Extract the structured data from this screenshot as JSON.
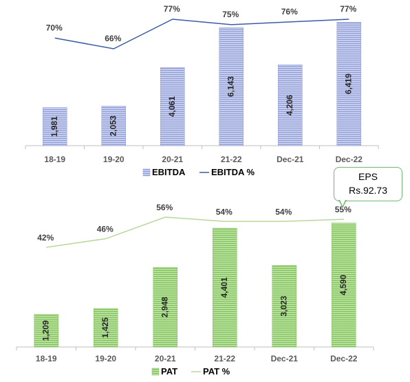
{
  "chart_data": [
    {
      "type": "bar",
      "categories": [
        "18-19",
        "19-20",
        "20-21",
        "21-22",
        "Dec-21",
        "Dec-22"
      ],
      "series": [
        {
          "name": "EBITDA",
          "kind": "bar",
          "values": [
            1981,
            2053,
            4061,
            6143,
            4206,
            6419
          ],
          "labels": [
            "1,981",
            "2,053",
            "4,061",
            "6,143",
            "4,206",
            "6,419"
          ],
          "color": "#aab4e0"
        },
        {
          "name": "EBITDA %",
          "kind": "line",
          "values": [
            70,
            66,
            77,
            75,
            76,
            77
          ],
          "labels": [
            "70%",
            "66%",
            "77%",
            "75%",
            "76%",
            "77%"
          ],
          "color": "#3b5aa5"
        }
      ],
      "legend": [
        "EBITDA",
        "EBITDA %"
      ],
      "legend_position": "bottom"
    },
    {
      "type": "bar",
      "categories": [
        "18-19",
        "19-20",
        "20-21",
        "21-22",
        "Dec-21",
        "Dec-22"
      ],
      "series": [
        {
          "name": "PAT",
          "kind": "bar",
          "values": [
            1209,
            1425,
            2948,
            4401,
            3023,
            4590
          ],
          "labels": [
            "1,209",
            "1,425",
            "2,948",
            "4,401",
            "3,023",
            "4,590"
          ],
          "color": "#9fd07f"
        },
        {
          "name": "PAT %",
          "kind": "line",
          "values": [
            42,
            46,
            56,
            54,
            54,
            55
          ],
          "labels": [
            "42%",
            "46%",
            "56%",
            "54%",
            "54%",
            "55%"
          ],
          "color": "#b6d89a"
        }
      ],
      "legend": [
        "PAT",
        "PAT %"
      ],
      "legend_position": "bottom"
    }
  ],
  "callout": {
    "line1": "EPS",
    "line2": "Rs.92.73"
  }
}
